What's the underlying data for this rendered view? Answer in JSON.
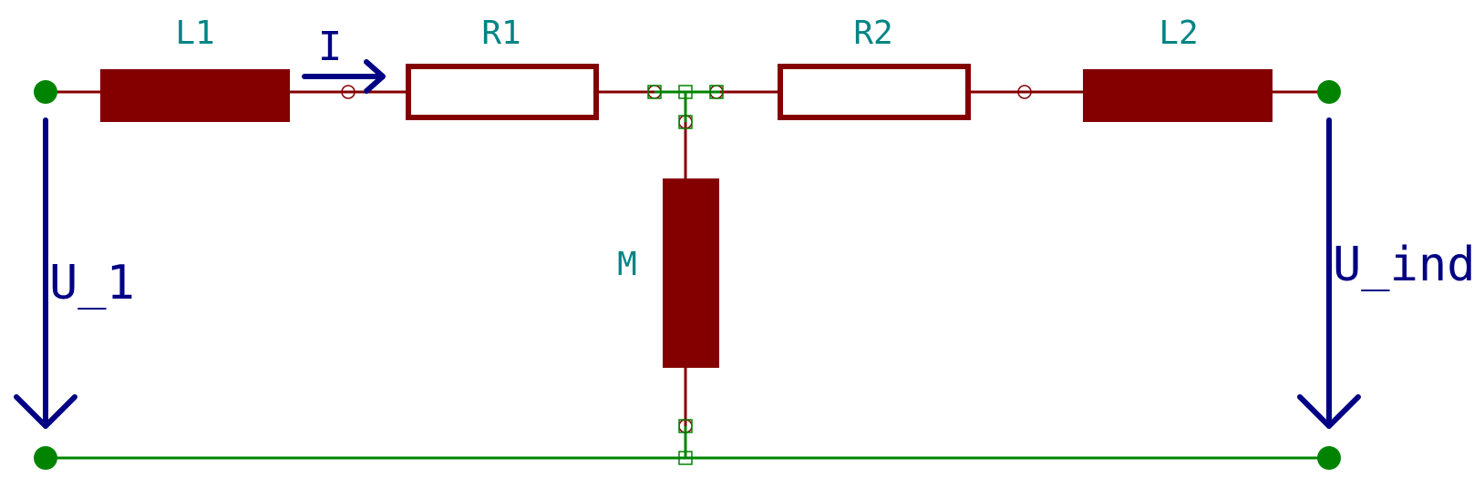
{
  "colors": {
    "component": "#840000",
    "wire": "#008400",
    "annotation": "#000084",
    "reference": "#008484",
    "background": "#ffffff"
  },
  "components": {
    "l1": {
      "label": "L1",
      "kind": "inductor"
    },
    "r1": {
      "label": "R1",
      "kind": "resistor"
    },
    "r2": {
      "label": "R2",
      "kind": "resistor"
    },
    "l2": {
      "label": "L2",
      "kind": "inductor"
    },
    "m": {
      "label": "M",
      "kind": "inductor"
    }
  },
  "annotations": {
    "current": "I",
    "input_voltage": "U_1",
    "induced_voltage": "U_ind"
  }
}
